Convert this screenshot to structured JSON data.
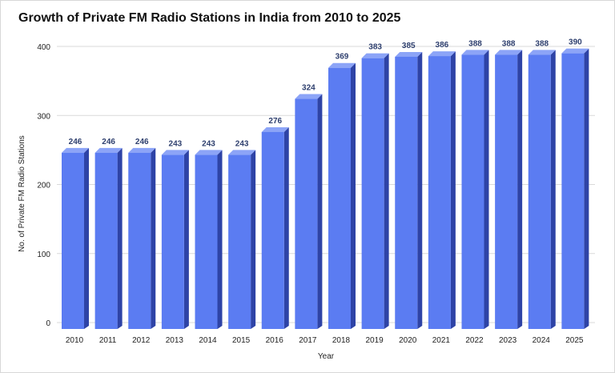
{
  "chart_data": {
    "type": "bar",
    "title": "Growth of Private FM Radio Stations in India from 2010 to 2025",
    "xlabel": "Year",
    "ylabel": "No. of Private FM Radio Stations",
    "categories": [
      "2010",
      "2011",
      "2012",
      "2013",
      "2014",
      "2015",
      "2016",
      "2017",
      "2018",
      "2019",
      "2020",
      "2021",
      "2022",
      "2023",
      "2024",
      "2025"
    ],
    "values": [
      246,
      246,
      246,
      243,
      243,
      243,
      276,
      324,
      369,
      383,
      385,
      386,
      388,
      388,
      388,
      390
    ],
    "ylim": [
      0,
      400
    ],
    "yticks": [
      0,
      100,
      200,
      300,
      400
    ],
    "grid": true,
    "legend": "none",
    "colors": {
      "bar_front": "#5b7cf2",
      "bar_side": "#2e43a6",
      "bar_top": "#8ca4f7",
      "label": "#2e3f6e",
      "grid": "#d9d9d9"
    }
  }
}
